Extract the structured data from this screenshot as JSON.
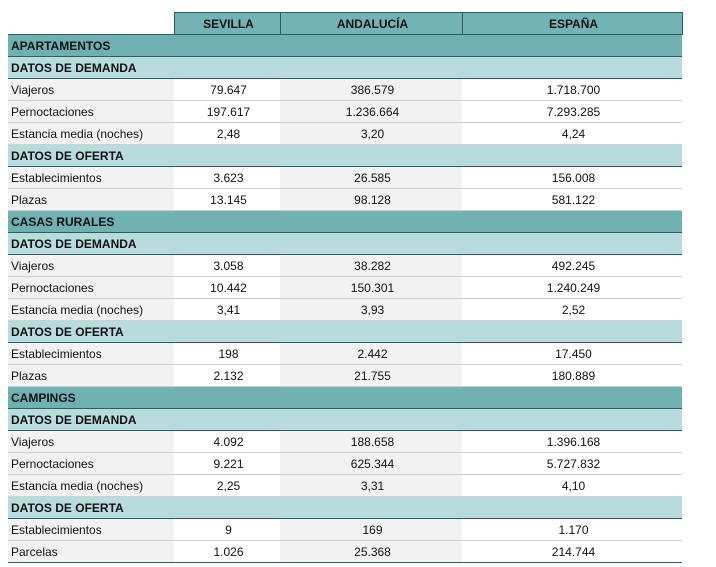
{
  "columns": [
    "SEVILLA",
    "ANDALUCÍA",
    "ESPAÑA"
  ],
  "sections": [
    {
      "title": "APARTAMENTOS",
      "groups": [
        {
          "title": "DATOS DE DEMANDA",
          "rows": [
            {
              "label": "Viajeros",
              "values": [
                "79.647",
                "386.579",
                "1.718.700"
              ]
            },
            {
              "label": "Pernoctaciones",
              "values": [
                "197.617",
                "1.236.664",
                "7.293.285"
              ]
            },
            {
              "label": "Estancia media (noches)",
              "values": [
                "2,48",
                "3,20",
                "4,24"
              ]
            }
          ]
        },
        {
          "title": "DATOS DE OFERTA",
          "rows": [
            {
              "label": "Establecimientos",
              "values": [
                "3.623",
                "26.585",
                "156.008"
              ]
            },
            {
              "label": "Plazas",
              "values": [
                "13.145",
                "98.128",
                "581.122"
              ]
            }
          ]
        }
      ]
    },
    {
      "title": "CASAS RURALES",
      "groups": [
        {
          "title": "DATOS DE DEMANDA",
          "rows": [
            {
              "label": "Viajeros",
              "values": [
                "3.058",
                "38.282",
                "492.245"
              ]
            },
            {
              "label": "Pernoctaciones",
              "values": [
                "10.442",
                "150.301",
                "1.240.249"
              ]
            },
            {
              "label": "Estancia media (noches)",
              "values": [
                "3,41",
                "3,93",
                "2,52"
              ]
            }
          ]
        },
        {
          "title": "DATOS DE OFERTA",
          "rows": [
            {
              "label": "Establecimientos",
              "values": [
                "198",
                "2.442",
                "17.450"
              ]
            },
            {
              "label": "Plazas",
              "values": [
                "2.132",
                "21.755",
                "180.889"
              ]
            }
          ]
        }
      ]
    },
    {
      "title": "CAMPINGS",
      "groups": [
        {
          "title": "DATOS DE DEMANDA",
          "rows": [
            {
              "label": "Viajeros",
              "values": [
                "4.092",
                "188.658",
                "1.396.168"
              ]
            },
            {
              "label": "Pernoctaciones",
              "values": [
                "9.221",
                "625.344",
                "5.727.832"
              ]
            },
            {
              "label": "Estancia media (noches)",
              "values": [
                "2,25",
                "3,31",
                "4,10"
              ]
            }
          ]
        },
        {
          "title": "DATOS DE OFERTA",
          "rows": [
            {
              "label": "Establecimientos",
              "values": [
                "9",
                "169",
                "1.170"
              ]
            },
            {
              "label": "Parcelas",
              "values": [
                "1.026",
                "25.368",
                "214.744"
              ]
            }
          ]
        }
      ]
    }
  ]
}
